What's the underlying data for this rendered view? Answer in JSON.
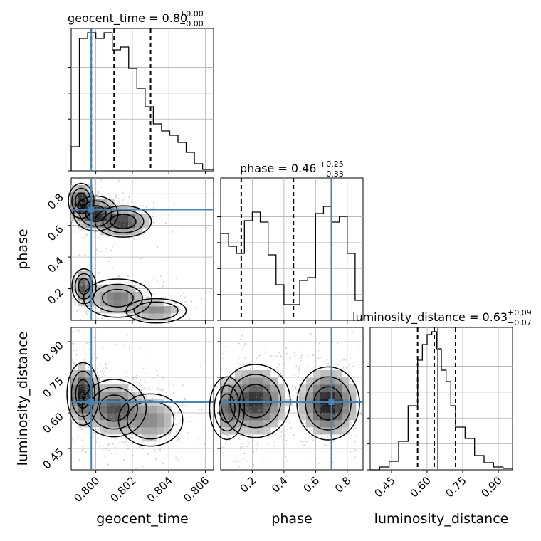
{
  "chart_data": {
    "type": "corner",
    "parameters": [
      "geocent_time",
      "phase",
      "luminosity_distance"
    ],
    "axis_labels": {
      "geocent_time": "geocent_time",
      "phase": "phase",
      "luminosity_distance": "luminosity_distance"
    },
    "titles": [
      {
        "param": "geocent_time",
        "prefix": "geocent_time = 0.80",
        "plus": "+0.00",
        "minus": "−0.00"
      },
      {
        "param": "phase",
        "prefix": "phase = 0.46",
        "plus": "+0.25",
        "minus": "−0.33"
      },
      {
        "param": "luminosity_distance",
        "prefix": "luminosity_distance = 0.63",
        "plus": "+0.09",
        "minus": "−0.07"
      }
    ],
    "ranges": {
      "geocent_time": [
        0.79865,
        0.80645
      ],
      "phase": [
        0.0,
        0.9
      ],
      "luminosity_distance": [
        0.36,
        0.96
      ]
    },
    "ticks": {
      "geocent_time": {
        "values": [
          0.8,
          0.802,
          0.804,
          0.806
        ],
        "labels": [
          "0.800",
          "0.802",
          "0.804",
          "0.806"
        ]
      },
      "phase": {
        "values": [
          0.2,
          0.4,
          0.6,
          0.8
        ],
        "labels": [
          "0.2",
          "0.4",
          "0.6",
          "0.8"
        ]
      },
      "luminosity_distance": {
        "values": [
          0.45,
          0.6,
          0.75,
          0.9
        ],
        "labels": [
          "0.45",
          "0.60",
          "0.75",
          "0.90"
        ]
      }
    },
    "truths": {
      "geocent_time": 0.79975,
      "phase": 0.7,
      "luminosity_distance": 0.645
    },
    "quantiles": {
      "geocent_time": [
        0.79975,
        0.801,
        0.803
      ],
      "phase": [
        0.13,
        0.46,
        0.7
      ],
      "luminosity_distance": [
        0.56,
        0.63,
        0.72
      ]
    },
    "histograms": {
      "geocent_time": {
        "edges": [
          0.79865,
          0.7991,
          0.79955,
          0.8,
          0.80045,
          0.8009,
          0.80135,
          0.8018,
          0.80225,
          0.8027,
          0.80315,
          0.8036,
          0.80405,
          0.8045,
          0.80495,
          0.8054,
          0.80585,
          0.80645
        ],
        "counts": [
          0.17,
          0.93,
          0.97,
          0.93,
          0.97,
          0.85,
          0.87,
          0.72,
          0.58,
          0.45,
          0.33,
          0.28,
          0.25,
          0.2,
          0.13,
          0.05,
          0.01
        ]
      },
      "phase": {
        "edges": [
          0.0,
          0.05,
          0.1,
          0.15,
          0.2,
          0.25,
          0.3,
          0.35,
          0.4,
          0.45,
          0.5,
          0.55,
          0.6,
          0.65,
          0.7,
          0.75,
          0.8,
          0.85,
          0.9
        ],
        "counts": [
          0.61,
          0.52,
          0.47,
          0.7,
          0.76,
          0.69,
          0.46,
          0.25,
          0.11,
          0.11,
          0.28,
          0.3,
          0.75,
          0.8,
          0.69,
          0.73,
          0.47,
          0.14
        ]
      },
      "luminosity_distance": {
        "edges": [
          0.36,
          0.4,
          0.44,
          0.48,
          0.52,
          0.56,
          0.58,
          0.6,
          0.62,
          0.64,
          0.66,
          0.68,
          0.7,
          0.72,
          0.76,
          0.8,
          0.84,
          0.88,
          0.92,
          0.96
        ],
        "counts": [
          0.0,
          0.02,
          0.06,
          0.2,
          0.45,
          0.77,
          0.88,
          0.95,
          0.97,
          0.85,
          0.7,
          0.62,
          0.45,
          0.3,
          0.22,
          0.1,
          0.05,
          0.02,
          0.01
        ]
      }
    },
    "density_blobs": {
      "phase_vs_geocent_time": [
        {
          "x": 0.7992,
          "y": 0.755,
          "sx": 0.00032,
          "sy": 0.05,
          "w": 1.0
        },
        {
          "x": 0.8,
          "y": 0.675,
          "sx": 0.00055,
          "sy": 0.05,
          "w": 0.9
        },
        {
          "x": 0.8015,
          "y": 0.625,
          "sx": 0.0007,
          "sy": 0.045,
          "w": 0.85
        },
        {
          "x": 0.79935,
          "y": 0.215,
          "sx": 0.0003,
          "sy": 0.05,
          "w": 0.8
        },
        {
          "x": 0.8012,
          "y": 0.14,
          "sx": 0.00085,
          "sy": 0.055,
          "w": 0.55
        },
        {
          "x": 0.8033,
          "y": 0.06,
          "sx": 0.00075,
          "sy": 0.035,
          "w": 0.45
        }
      ],
      "luminosity_distance_vs_geocent_time": [
        {
          "x": 0.7993,
          "y": 0.68,
          "sx": 0.0004,
          "sy": 0.06,
          "w": 1.0
        },
        {
          "x": 0.801,
          "y": 0.62,
          "sx": 0.0008,
          "sy": 0.055,
          "w": 0.75
        },
        {
          "x": 0.803,
          "y": 0.57,
          "sx": 0.0008,
          "sy": 0.05,
          "w": 0.45
        }
      ],
      "luminosity_distance_vs_phase": [
        {
          "x": 0.22,
          "y": 0.65,
          "sx": 0.1,
          "sy": 0.07,
          "w": 0.9
        },
        {
          "x": 0.68,
          "y": 0.64,
          "sx": 0.09,
          "sy": 0.07,
          "w": 1.0
        },
        {
          "x": 0.04,
          "y": 0.62,
          "sx": 0.05,
          "sy": 0.06,
          "w": 0.5
        }
      ]
    },
    "truth_color": "#4682b4",
    "line_color": "#000000",
    "grid": true
  }
}
